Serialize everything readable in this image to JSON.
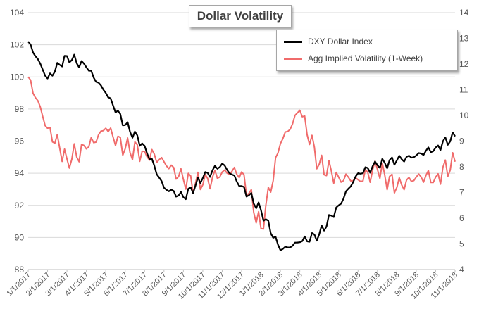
{
  "chart_data": {
    "type": "line",
    "title": "Dollar Volatility",
    "x": [
      "1/1/2017",
      "2/1/2017",
      "3/1/2017",
      "4/1/2017",
      "5/1/2017",
      "6/1/2017",
      "7/1/2017",
      "8/1/2017",
      "9/1/2017",
      "10/1/2017",
      "11/1/2017",
      "12/1/2017",
      "1/1/2018",
      "2/1/2018",
      "3/1/2018",
      "4/1/2018",
      "5/1/2018",
      "6/1/2018",
      "7/1/2018",
      "8/1/2018",
      "9/1/2018",
      "10/1/2018",
      "11/1/2018"
    ],
    "left_axis": {
      "ylim": [
        88,
        104
      ],
      "ticks": [
        88,
        90,
        92,
        94,
        96,
        98,
        100,
        102,
        104
      ]
    },
    "right_axis": {
      "ylim": [
        4,
        14
      ],
      "ticks": [
        4,
        5,
        6,
        7,
        8,
        9,
        10,
        11,
        12,
        13,
        14
      ]
    },
    "grid": "horizontal",
    "legend_position": "top-right",
    "series": [
      {
        "name": "DXY Dollar Index",
        "axis": "left",
        "color": "#000000",
        "values": [
          102.2,
          99.9,
          101.3,
          100.6,
          99.0,
          97.0,
          95.7,
          93.1,
          92.5,
          93.7,
          94.6,
          93.2,
          91.7,
          89.2,
          89.7,
          90.2,
          92.0,
          94.0,
          94.5,
          94.8,
          95.1,
          95.6,
          96.3
        ]
      },
      {
        "name": "Agg Implied Volatility (1-Week)",
        "axis": "right",
        "color": "#f06b6b",
        "values": [
          11.5,
          9.5,
          8.3,
          8.7,
          9.5,
          8.7,
          8.6,
          8.2,
          7.5,
          7.3,
          7.8,
          7.8,
          5.6,
          8.9,
          10.2,
          8.1,
          7.6,
          7.5,
          7.9,
          7.2,
          7.6,
          7.6,
          8.2
        ]
      }
    ]
  }
}
